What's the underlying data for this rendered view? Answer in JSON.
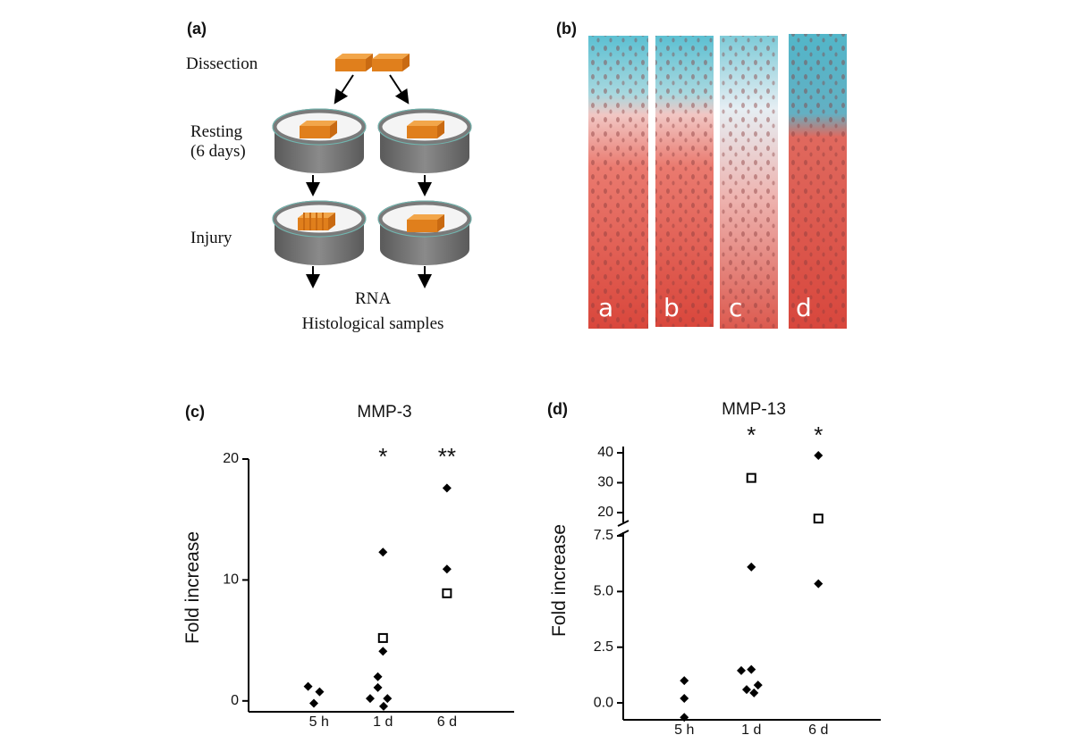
{
  "panel_a": {
    "label": "(a)",
    "steps": [
      "Dissection",
      "Resting\n(6 days)",
      "Injury"
    ],
    "outputs": [
      "RNA",
      "Histological samples"
    ]
  },
  "panel_b": {
    "label": "(b)",
    "lanes": [
      "a",
      "b",
      "c",
      "d"
    ]
  },
  "chart_data": [
    {
      "type": "scatter",
      "panel": "(c)",
      "title": "MMP-3",
      "ylabel": "Fold increase",
      "xlim": [
        -0.1,
        4.05
      ],
      "xticks": [
        {
          "value": 1,
          "label": "5 h"
        },
        {
          "value": 2,
          "label": "1 d"
        },
        {
          "value": 3,
          "label": "6 d"
        }
      ],
      "ylim": [
        -0.9,
        20
      ],
      "yticks": [
        0,
        10,
        20
      ],
      "series": [
        {
          "marker": "diamond",
          "color": "#000000",
          "x": [
            0.83,
            1.01,
            0.92,
            2.0,
            2.0,
            1.92,
            1.92,
            1.8,
            2.07,
            2.01,
            3.0,
            3.0
          ],
          "y": [
            1.2,
            0.75,
            -0.2,
            12.3,
            4.1,
            2.0,
            1.1,
            0.2,
            0.2,
            -0.45,
            17.6,
            10.9
          ]
        },
        {
          "marker": "square",
          "color": "#000000",
          "x": [
            2.0,
            3.0
          ],
          "y": [
            5.2,
            8.9
          ]
        }
      ],
      "annotations": [
        {
          "text": "*",
          "x": 2
        },
        {
          "text": "**",
          "x": 3
        }
      ]
    },
    {
      "type": "scatter",
      "panel": "(d)",
      "title": "MMP-13",
      "ylabel": "Fold increase",
      "xlim": [
        0.09,
        3.93
      ],
      "xticks": [
        {
          "value": 1,
          "label": "5 h"
        },
        {
          "value": 2,
          "label": "1 d"
        },
        {
          "value": 3,
          "label": "6 d"
        }
      ],
      "y_segments": [
        {
          "ylim": [
            -0.76,
            7.66
          ],
          "yticks": [
            {
              "value": 0,
              "label": "0.0"
            },
            2.5,
            {
              "value": 5,
              "label": "5.0"
            },
            7.5
          ]
        },
        {
          "ylim": [
            16.7,
            42.1
          ],
          "yticks": [
            20,
            30,
            40
          ]
        }
      ],
      "series": [
        {
          "marker": "diamond",
          "color": "#000000",
          "x": [
            1.0,
            1.0,
            1.0,
            2.0,
            1.85,
            2.0,
            1.93,
            2.04,
            2.1,
            3.0,
            3.0
          ],
          "y": [
            1.0,
            0.2,
            -0.65,
            6.1,
            1.45,
            1.5,
            0.6,
            0.45,
            0.8,
            39.1,
            5.35
          ]
        },
        {
          "marker": "square",
          "color": "#000000",
          "x": [
            2.0,
            3.0
          ],
          "y": [
            31.6,
            18
          ]
        }
      ],
      "annotations": [
        {
          "text": "*",
          "x": 2
        },
        {
          "text": "*",
          "x": 3
        }
      ]
    }
  ]
}
